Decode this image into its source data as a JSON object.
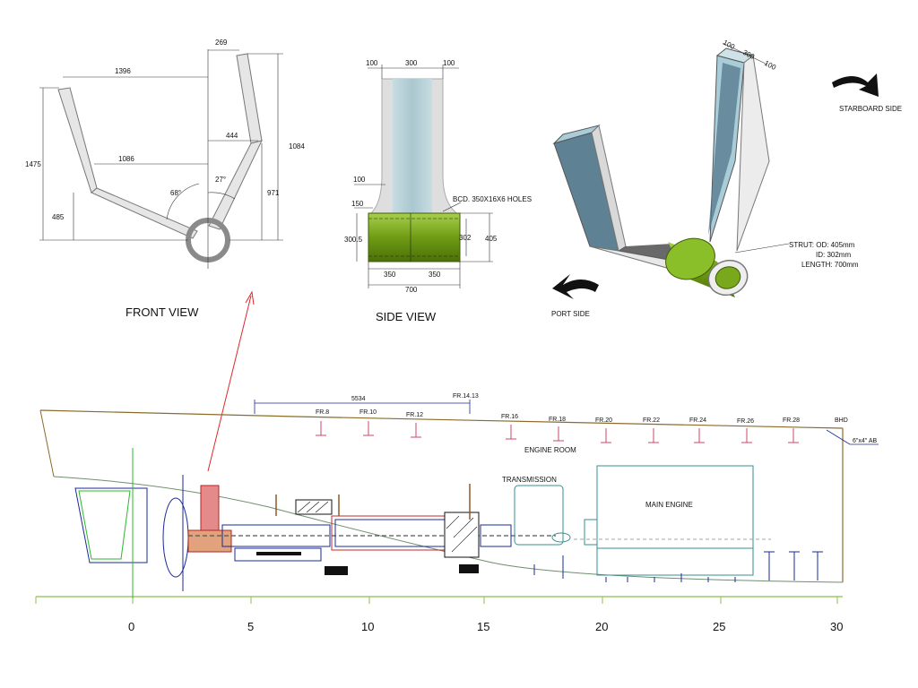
{
  "front_view": {
    "caption": "FRONT VIEW",
    "dims": {
      "top_width": "269",
      "left_span": "1396",
      "inner_span": "444",
      "mid_span": "1086",
      "height_total": "1475",
      "height_right": "1084",
      "height_inner": "971",
      "height_low": "485",
      "angle_left": "68°",
      "angle_right": "27°"
    }
  },
  "side_view": {
    "caption": "SIDE VIEW",
    "dims": {
      "top_left": "100",
      "top_mid": "300",
      "top_right": "100",
      "neck": "100",
      "fillet": "150",
      "bcd": "BCD. 350X16X6 HOLES",
      "boss_left": "300.5",
      "boss_id": "302",
      "boss_od": "405",
      "half_left": "350",
      "half_right": "350",
      "total": "700"
    }
  },
  "iso_view": {
    "dims": {
      "d1": "100",
      "d2": "300",
      "d3": "100"
    },
    "starboard": "STARBOARD SIDE",
    "port": "PORT SIDE",
    "strut_spec": [
      "STRUT:  OD: 405mm",
      "ID: 302mm",
      "LENGTH: 700mm"
    ]
  },
  "profile": {
    "top_dim": "5534",
    "frames": [
      "FR.8",
      "FR.10",
      "FR.12",
      "FR.14.13",
      "FR.16",
      "FR.18",
      "FR.20",
      "FR.22",
      "FR.24",
      "FR.26",
      "FR.28"
    ],
    "bhd": "BHD",
    "ab": "6\"x4\" AB",
    "engine_room": "ENGINE ROOM",
    "transmission": "TRANSMISSION",
    "main_engine": "MAIN ENGINE",
    "axis_ticks": [
      "0",
      "5",
      "10",
      "15",
      "20",
      "25",
      "30"
    ]
  },
  "colors": {
    "strut_green": "#7aa81c",
    "strut_blue": "#a9cdd8",
    "arrow_red": "#e0262a"
  }
}
